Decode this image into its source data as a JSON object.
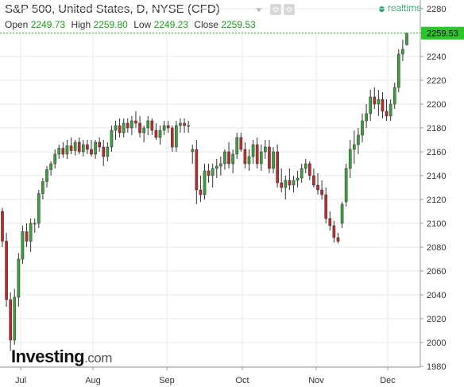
{
  "header": {
    "title": "S&P 500, United States, D, NYSE (CFD)",
    "realtime_label": "realtime",
    "open_label": "Open",
    "open_value": "2249.73",
    "high_label": "High",
    "high_value": "2259.80",
    "low_label": "Low",
    "low_value": "2249.23",
    "close_label": "Close",
    "close_value": "2259.53"
  },
  "logo": {
    "main": "Investing",
    "suffix": ".com"
  },
  "colors": {
    "up": "#3c9e3c",
    "down": "#b82d2d",
    "wick": "#333333",
    "grid": "#e9e9e9",
    "price_tag": "#2ec42e"
  },
  "chart_data": {
    "type": "candlestick",
    "x_labels": [
      "Jul",
      "Aug",
      "Sep",
      "Oct",
      "Nov",
      "Dec"
    ],
    "y_ticks": [
      1980,
      2000,
      2020,
      2040,
      2060,
      2080,
      2100,
      2120,
      2140,
      2160,
      2180,
      2200,
      2220,
      2240,
      2260,
      2280
    ],
    "ylim": [
      1972,
      2290
    ],
    "last_price": "2259.53",
    "candles": [
      [
        2110,
        2113,
        2080,
        2085
      ],
      [
        2085,
        2092,
        2030,
        2036
      ],
      [
        2036,
        2042,
        1993,
        2002
      ],
      [
        2002,
        2045,
        1998,
        2038
      ],
      [
        2038,
        2075,
        2030,
        2070
      ],
      [
        2070,
        2098,
        2066,
        2093
      ],
      [
        2093,
        2100,
        2080,
        2085
      ],
      [
        2085,
        2104,
        2076,
        2100
      ],
      [
        2100,
        2104,
        2092,
        2100
      ],
      [
        2100,
        2128,
        2096,
        2125
      ],
      [
        2125,
        2138,
        2120,
        2135
      ],
      [
        2135,
        2148,
        2130,
        2145
      ],
      [
        2145,
        2152,
        2140,
        2150
      ],
      [
        2150,
        2162,
        2146,
        2158
      ],
      [
        2158,
        2166,
        2154,
        2163
      ],
      [
        2163,
        2168,
        2155,
        2158
      ],
      [
        2158,
        2170,
        2154,
        2165
      ],
      [
        2165,
        2172,
        2158,
        2161
      ],
      [
        2161,
        2170,
        2157,
        2168
      ],
      [
        2168,
        2172,
        2158,
        2160
      ],
      [
        2160,
        2170,
        2156,
        2166
      ],
      [
        2166,
        2170,
        2158,
        2162
      ],
      [
        2162,
        2170,
        2156,
        2158
      ],
      [
        2158,
        2170,
        2154,
        2168
      ],
      [
        2168,
        2172,
        2160,
        2164
      ],
      [
        2164,
        2170,
        2148,
        2156
      ],
      [
        2156,
        2168,
        2152,
        2164
      ],
      [
        2164,
        2182,
        2160,
        2178
      ],
      [
        2178,
        2186,
        2170,
        2182
      ],
      [
        2182,
        2188,
        2172,
        2176
      ],
      [
        2176,
        2188,
        2172,
        2184
      ],
      [
        2184,
        2188,
        2176,
        2180
      ],
      [
        2180,
        2190,
        2174,
        2186
      ],
      [
        2186,
        2194,
        2180,
        2184
      ],
      [
        2184,
        2190,
        2172,
        2176
      ],
      [
        2176,
        2182,
        2168,
        2180
      ],
      [
        2180,
        2190,
        2174,
        2186
      ],
      [
        2186,
        2188,
        2174,
        2178
      ],
      [
        2178,
        2184,
        2170,
        2172
      ],
      [
        2172,
        2182,
        2166,
        2178
      ],
      [
        2178,
        2186,
        2174,
        2182
      ],
      [
        2182,
        2186,
        2176,
        2180
      ],
      [
        2180,
        2182,
        2160,
        2164
      ],
      [
        2164,
        2186,
        2160,
        2182
      ],
      [
        2182,
        2188,
        2176,
        2184
      ],
      [
        2184,
        2188,
        2176,
        2182
      ],
      [
        2182,
        2186,
        2176,
        2182
      ],
      [
        2160,
        2166,
        2150,
        2162
      ],
      [
        2162,
        2170,
        2116,
        2128
      ],
      [
        2128,
        2140,
        2118,
        2124
      ],
      [
        2124,
        2150,
        2120,
        2144
      ],
      [
        2144,
        2150,
        2134,
        2140
      ],
      [
        2140,
        2150,
        2130,
        2146
      ],
      [
        2146,
        2154,
        2138,
        2148
      ],
      [
        2148,
        2156,
        2140,
        2150
      ],
      [
        2150,
        2162,
        2145,
        2160
      ],
      [
        2160,
        2168,
        2146,
        2150
      ],
      [
        2150,
        2162,
        2142,
        2158
      ],
      [
        2158,
        2176,
        2154,
        2172
      ],
      [
        2172,
        2176,
        2160,
        2162
      ],
      [
        2162,
        2168,
        2146,
        2150
      ],
      [
        2150,
        2162,
        2144,
        2156
      ],
      [
        2156,
        2170,
        2150,
        2166
      ],
      [
        2166,
        2172,
        2146,
        2150
      ],
      [
        2150,
        2166,
        2144,
        2160
      ],
      [
        2160,
        2170,
        2154,
        2164
      ],
      [
        2164,
        2170,
        2142,
        2146
      ],
      [
        2146,
        2164,
        2142,
        2160
      ],
      [
        2160,
        2166,
        2130,
        2134
      ],
      [
        2134,
        2146,
        2126,
        2130
      ],
      [
        2130,
        2140,
        2120,
        2136
      ],
      [
        2136,
        2146,
        2128,
        2132
      ],
      [
        2132,
        2140,
        2126,
        2136
      ],
      [
        2136,
        2144,
        2130,
        2138
      ],
      [
        2138,
        2150,
        2134,
        2146
      ],
      [
        2146,
        2154,
        2142,
        2150
      ],
      [
        2150,
        2152,
        2136,
        2140
      ],
      [
        2140,
        2146,
        2130,
        2132
      ],
      [
        2132,
        2142,
        2124,
        2128
      ],
      [
        2128,
        2136,
        2120,
        2124
      ],
      [
        2124,
        2130,
        2100,
        2104
      ],
      [
        2104,
        2110,
        2094,
        2098
      ],
      [
        2098,
        2102,
        2084,
        2088
      ],
      [
        2088,
        2092,
        2083,
        2085
      ],
      [
        2100,
        2118,
        2096,
        2116
      ],
      [
        2118,
        2150,
        2114,
        2146
      ],
      [
        2146,
        2170,
        2138,
        2162
      ],
      [
        2162,
        2178,
        2150,
        2166
      ],
      [
        2166,
        2180,
        2158,
        2174
      ],
      [
        2174,
        2192,
        2168,
        2186
      ],
      [
        2186,
        2200,
        2180,
        2192
      ],
      [
        2192,
        2212,
        2186,
        2206
      ],
      [
        2206,
        2214,
        2196,
        2200
      ],
      [
        2200,
        2212,
        2190,
        2204
      ],
      [
        2204,
        2210,
        2188,
        2194
      ],
      [
        2194,
        2204,
        2186,
        2190
      ],
      [
        2190,
        2204,
        2186,
        2200
      ],
      [
        2200,
        2218,
        2196,
        2214
      ],
      [
        2214,
        2246,
        2210,
        2242
      ],
      [
        2242,
        2254,
        2236,
        2246
      ],
      [
        2249.73,
        2259.8,
        2249.23,
        2259.53
      ]
    ]
  }
}
